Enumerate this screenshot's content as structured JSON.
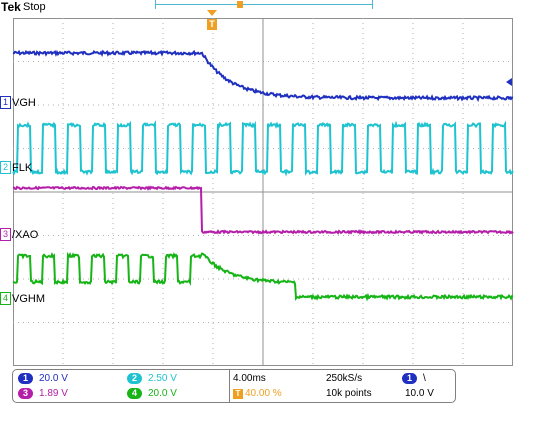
{
  "header": {
    "brand": "Tek",
    "status": "Stop"
  },
  "trigger": {
    "marker_label": "T"
  },
  "channels": [
    {
      "number": "1",
      "name": "VGH",
      "scale": "20.0 V",
      "color": "#1f2fbf"
    },
    {
      "number": "2",
      "name": "FLK",
      "scale": "2.50 V",
      "color": "#1fc3d0"
    },
    {
      "number": "3",
      "name": "/XAO",
      "scale": "1.89 V",
      "color": "#b41ea8"
    },
    {
      "number": "4",
      "name": "VGHM",
      "scale": "20.0 V",
      "color": "#16b416"
    }
  ],
  "timebase": {
    "time_per_div": "4.00ms",
    "trigger_position": "40.00 %",
    "sample_rate": "250kS/s",
    "record_length": "10k points",
    "trigger_source": "1",
    "trigger_slope": "\\",
    "trigger_level": "10.0 V"
  },
  "colors": {
    "trigger": "#f0a020",
    "grid": "#909090"
  }
}
